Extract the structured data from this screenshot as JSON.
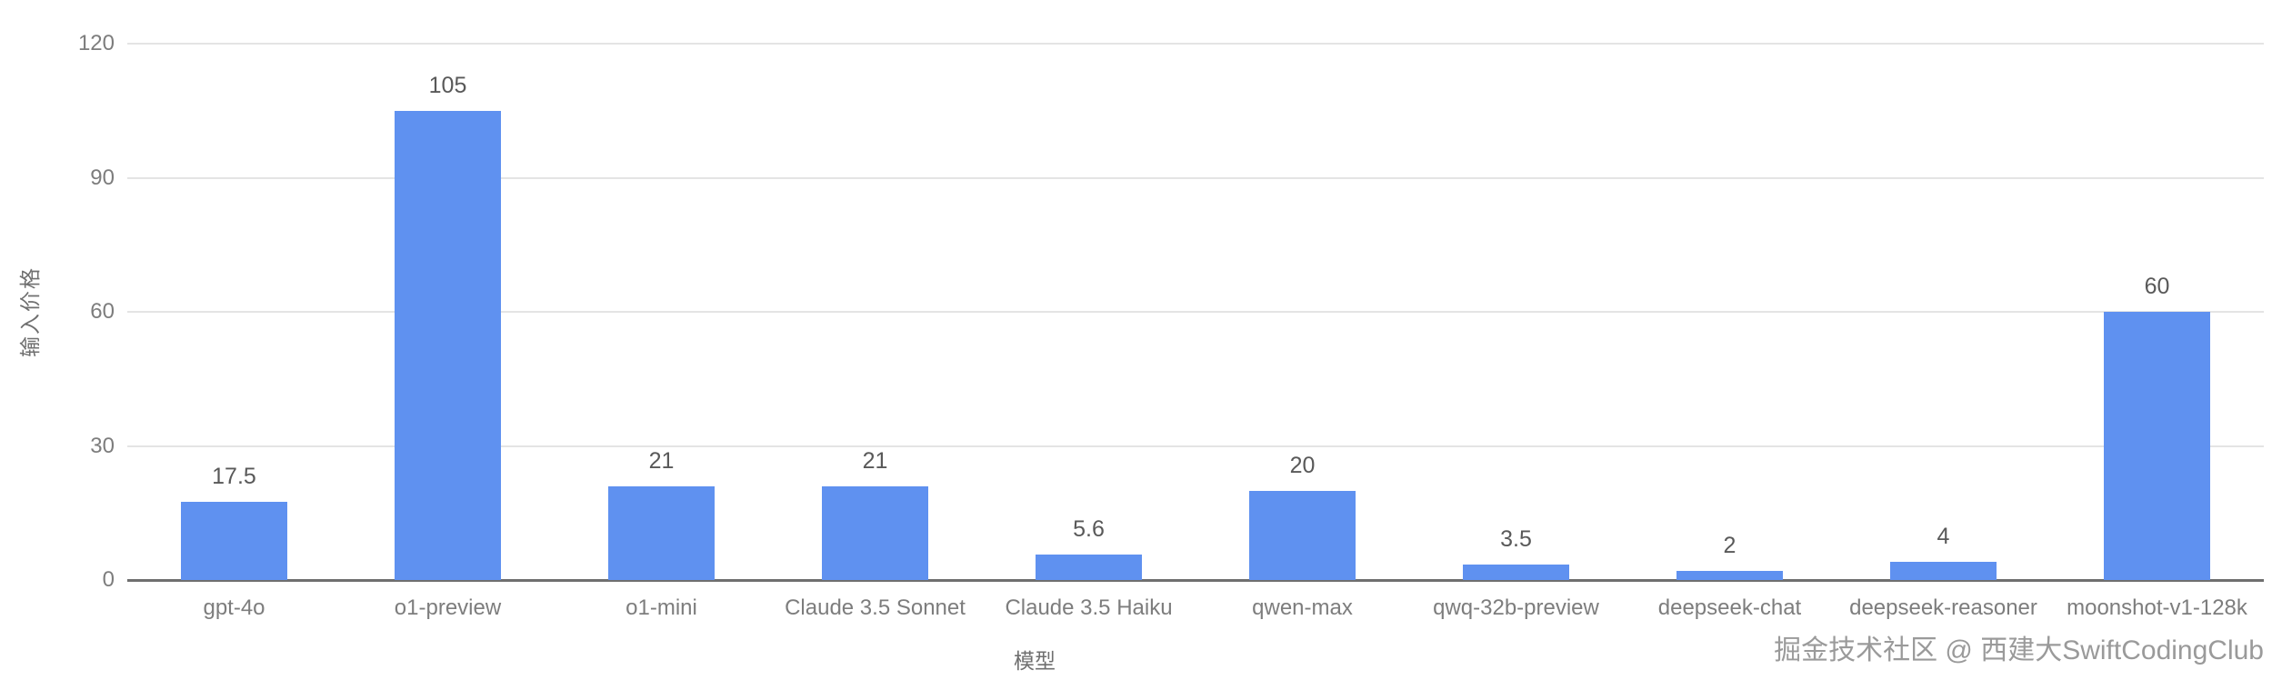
{
  "chart_data": {
    "type": "bar",
    "title": "",
    "xlabel": "模型",
    "ylabel": "输入价格",
    "categories": [
      "gpt-4o",
      "o1-preview",
      "o1-mini",
      "Claude 3.5 Sonnet",
      "Claude 3.5 Haiku",
      "qwen-max",
      "qwq-32b-preview",
      "deepseek-chat",
      "deepseek-reasoner",
      "moonshot-v1-128k"
    ],
    "values": [
      17.5,
      105,
      21,
      21,
      5.6,
      20,
      3.5,
      2,
      4,
      60
    ],
    "value_labels": [
      "17.5",
      "105",
      "21",
      "21",
      "5.6",
      "20",
      "3.5",
      "2",
      "4",
      "60"
    ],
    "yticks": [
      0,
      30,
      60,
      90,
      120
    ],
    "ylim": [
      0,
      120
    ],
    "grid": true,
    "legend": "none",
    "bar_color": "#5f91f0"
  },
  "colors": {
    "bar": "#5f91f0",
    "gridline": "#e4e4e4",
    "axis_line": "#6f6f6f",
    "tick_text": "#7d7d7d",
    "value_text": "#595959",
    "watermark_text": "#9a9a9a"
  },
  "watermark": {
    "text": "掘金技术社区 @ 西建大SwiftCodingClub"
  }
}
